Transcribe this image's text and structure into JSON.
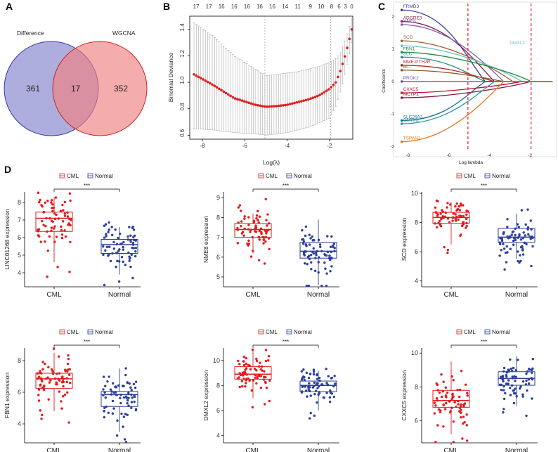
{
  "panels": {
    "A": "A",
    "B": "B",
    "C": "C",
    "D": "D"
  },
  "colors": {
    "cml": "#e41a1c",
    "normal": "#2b3f9c",
    "venn_left": "#8c8cd0",
    "venn_right": "#f08080"
  },
  "chart_data": [
    {
      "id": "venn",
      "type": "venn",
      "sets": [
        {
          "name": "Difference",
          "only": 361
        },
        {
          "name": "WGCNA",
          "only": 352
        }
      ],
      "intersection": 17
    },
    {
      "id": "cv",
      "type": "line",
      "xlabel": "Log(λ)",
      "ylabel": "Binomial Deviance",
      "xlim": [
        -8.6,
        -0.9
      ],
      "ylim": [
        0.57,
        1.5
      ],
      "xticks": [
        -8,
        -6,
        -4,
        -2
      ],
      "yticks": [
        0.6,
        0.8,
        1.0,
        1.2,
        1.4
      ],
      "top_axis": {
        "labels": [
          "17",
          "17",
          "16",
          "16",
          "16",
          "16",
          "16",
          "14",
          "11",
          "9",
          "10",
          "8",
          "6",
          "3",
          "0"
        ],
        "positions": [
          -8.3,
          -7.7,
          -7.1,
          -6.5,
          -5.9,
          -5.3,
          -4.7,
          -4.1,
          -3.5,
          -2.9,
          -2.4,
          -1.9,
          -1.55,
          -1.25,
          -0.95
        ]
      },
      "vlines": [
        -5.05,
        -1.95
      ],
      "curve": {
        "x": [
          -8.4,
          -7.5,
          -6.5,
          -5.5,
          -5.0,
          -4.5,
          -4.0,
          -3.5,
          -3.0,
          -2.5,
          -2.0,
          -1.7,
          -1.5,
          -1.3,
          -1.1,
          -0.95
        ],
        "y": [
          1.06,
          0.98,
          0.88,
          0.83,
          0.815,
          0.82,
          0.83,
          0.85,
          0.87,
          0.9,
          0.95,
          1.0,
          1.08,
          1.18,
          1.3,
          1.4
        ],
        "err_lo": [
          0.65,
          0.64,
          0.62,
          0.61,
          0.6,
          0.61,
          0.62,
          0.64,
          0.66,
          0.69,
          0.73,
          0.82,
          0.92,
          1.04,
          1.18,
          1.3
        ],
        "err_hi": [
          1.45,
          1.35,
          1.2,
          1.1,
          1.05,
          1.06,
          1.07,
          1.08,
          1.1,
          1.12,
          1.15,
          1.18,
          1.22,
          1.3,
          1.4,
          1.48
        ]
      }
    },
    {
      "id": "coef",
      "type": "line",
      "xlabel": "Log lambda",
      "ylabel": "Coefficients",
      "xlim": [
        -8.6,
        -0.8
      ],
      "ylim": [
        -2.1,
        2.4
      ],
      "xticks": [
        -8,
        -6,
        -4,
        -2
      ],
      "xtick_labels": [
        "-8",
        "-6",
        "-4",
        "-2"
      ],
      "yticks": [
        -2,
        -1,
        0,
        1,
        2
      ],
      "vlines": [
        -5.05,
        -1.95
      ],
      "series": [
        {
          "name": "FRMD3",
          "color": "#3a3a9e",
          "start": 2.2
        },
        {
          "name": "ADGRE3",
          "color": "#8b1a4a",
          "start": 1.85
        },
        {
          "name": "NME8",
          "color": "#7b68b0",
          "start": 1.75
        },
        {
          "name": "SCD",
          "color": "#a05a2c",
          "start": 1.25
        },
        {
          "name": "DMXL2",
          "color": "#6cc3c3",
          "start": 1.1
        },
        {
          "name": "FBN1",
          "color": "#1c8b3c",
          "start": 0.9
        },
        {
          "name": "SLC",
          "color": "#2a8a8a",
          "start": 0.75
        },
        {
          "name": "MME-PTH2R",
          "color": "#b02a2a",
          "start": 0.5
        },
        {
          "name": "BI...",
          "color": "#8a5a2a",
          "start": 0.35
        },
        {
          "name": "PROK2",
          "color": "#7b4f9e",
          "start": 0.0
        },
        {
          "name": "CXXC5",
          "color": "#c8102e",
          "start": -0.35
        },
        {
          "name": "MCTP1",
          "color": "#8b1a3a",
          "start": -0.5
        },
        {
          "name": "SLC26A3",
          "color": "#1c6b8b",
          "start": -1.2
        },
        {
          "name": "CMTM2",
          "color": "#2a9a9a",
          "start": -1.3
        },
        {
          "name": "TSPAN2",
          "color": "#e07a1f",
          "start": -1.85
        }
      ],
      "tick_labels": [
        "FRMD3",
        "ADGRE3",
        "NME8",
        "SCD",
        "FBN1",
        "SLC",
        "MME-PTH2R",
        "BI...",
        "PROK2",
        "CXXC5",
        "MCTP1",
        "SLC26A3",
        "CMTM2",
        "TSPAN2"
      ],
      "inline_label": "DMXL2"
    },
    {
      "id": "box1",
      "type": "boxplot",
      "ylabel": "LINC01268 expression",
      "categories": [
        "CML",
        "Normal"
      ],
      "significance": "***",
      "ylim": [
        3.2,
        8.6
      ],
      "yticks": [
        4,
        5,
        6,
        7,
        8
      ],
      "stats": [
        {
          "min": 4.6,
          "q1": 6.35,
          "median": 7.1,
          "q3": 7.45,
          "max": 8.3
        },
        {
          "min": 3.9,
          "q1": 5.1,
          "median": 5.6,
          "q3": 5.9,
          "max": 6.6
        }
      ]
    },
    {
      "id": "box2",
      "type": "boxplot",
      "ylabel": "NME8 expression",
      "categories": [
        "CML",
        "Normal"
      ],
      "significance": "***",
      "ylim": [
        4.5,
        9.3
      ],
      "yticks": [
        5,
        6,
        7,
        8,
        9
      ],
      "stats": [
        {
          "min": 6.2,
          "q1": 7.0,
          "median": 7.4,
          "q3": 7.7,
          "max": 8.2
        },
        {
          "min": 4.6,
          "q1": 5.95,
          "median": 6.3,
          "q3": 6.75,
          "max": 7.9
        }
      ]
    },
    {
      "id": "box3",
      "type": "boxplot",
      "ylabel": "SCD expression",
      "categories": [
        "CML",
        "Normal"
      ],
      "significance": "***",
      "ylim": [
        3.6,
        10.1
      ],
      "yticks": [
        4,
        6,
        8,
        10
      ],
      "stats": [
        {
          "min": 6.5,
          "q1": 7.95,
          "median": 8.35,
          "q3": 8.7,
          "max": 9.4
        },
        {
          "min": 5.5,
          "q1": 6.65,
          "median": 7.0,
          "q3": 7.6,
          "max": 8.6
        }
      ]
    },
    {
      "id": "box4",
      "type": "boxplot",
      "ylabel": "FBN1 expression",
      "categories": [
        "CML",
        "Normal"
      ],
      "significance": "***",
      "ylim": [
        2.8,
        8.8
      ],
      "yticks": [
        4,
        6,
        8
      ],
      "stats": [
        {
          "min": 4.8,
          "q1": 6.25,
          "median": 6.85,
          "q3": 7.2,
          "max": 8.5
        },
        {
          "min": 3.5,
          "q1": 5.1,
          "median": 5.85,
          "q3": 6.05,
          "max": 7.5
        }
      ]
    },
    {
      "id": "box5",
      "type": "boxplot",
      "ylabel": "DMXL2 expression",
      "categories": [
        "CML",
        "Normal"
      ],
      "significance": "***",
      "ylim": [
        3.4,
        11.0
      ],
      "yticks": [
        4,
        6,
        8,
        10
      ],
      "stats": [
        {
          "min": 7.0,
          "q1": 8.5,
          "median": 8.9,
          "q3": 9.5,
          "max": 10.8
        },
        {
          "min": 6.0,
          "q1": 7.5,
          "median": 8.0,
          "q3": 8.35,
          "max": 9.2
        }
      ]
    },
    {
      "id": "box6",
      "type": "boxplot",
      "ylabel": "CXXC5 expression",
      "categories": [
        "CML",
        "Normal"
      ],
      "significance": "***",
      "ylim": [
        4.7,
        10.3
      ],
      "yticks": [
        6,
        8,
        10
      ],
      "stats": [
        {
          "min": 5.2,
          "q1": 6.8,
          "median": 7.2,
          "q3": 7.8,
          "max": 9.5
        },
        {
          "min": 6.9,
          "q1": 8.1,
          "median": 8.5,
          "q3": 8.9,
          "max": 9.8
        }
      ]
    }
  ],
  "legend": {
    "cml": "CML",
    "normal": "Normal"
  }
}
